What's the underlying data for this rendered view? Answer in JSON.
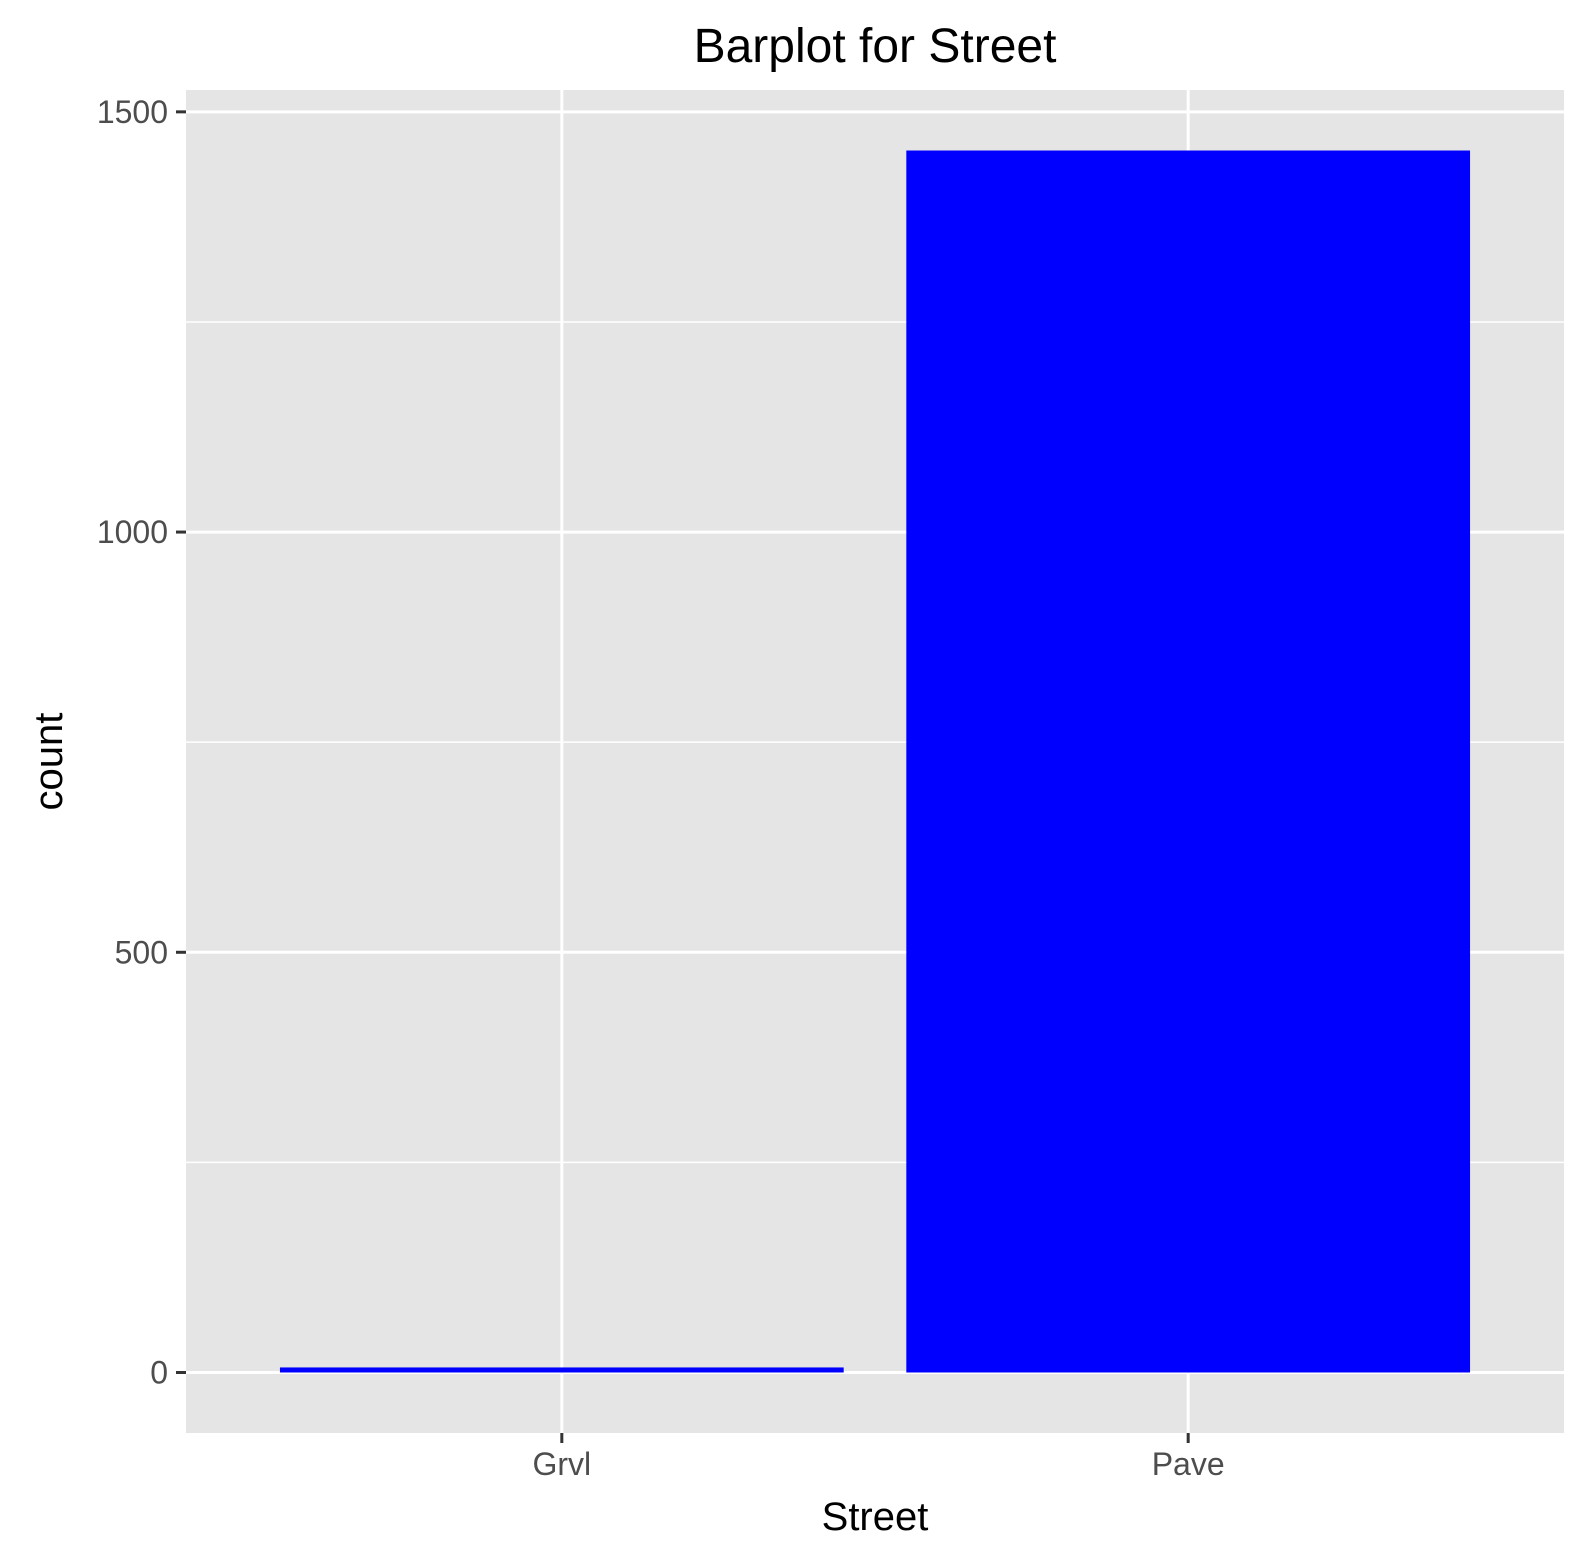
{
  "chart_data": {
    "type": "bar",
    "title": "Barplot for Street",
    "xlabel": "Street",
    "ylabel": "count",
    "categories": [
      "Grvl",
      "Pave"
    ],
    "values": [
      6,
      1454
    ],
    "ylim": [
      -72,
      1526
    ],
    "yticks": [
      0,
      500,
      1000,
      1500
    ],
    "yticks_minor": [
      250,
      750,
      1250
    ],
    "ytick_labels": [
      "0",
      "500",
      "1000",
      "1500"
    ],
    "grid": true,
    "legend": "none",
    "colors": {
      "bar_fill": "#0000ff",
      "panel_background": "#e5e5e5",
      "grid_line": "#ffffff",
      "tick_label": "#4d4d4d",
      "tick_mark": "#333333",
      "text": "#000000"
    }
  }
}
